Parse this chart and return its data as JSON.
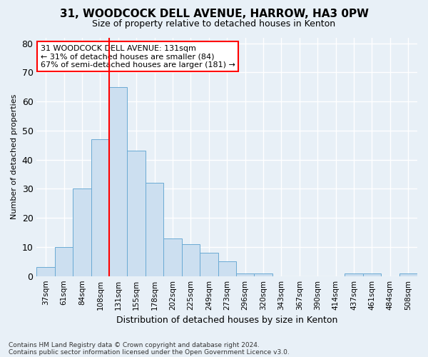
{
  "title1": "31, WOODCOCK DELL AVENUE, HARROW, HA3 0PW",
  "title2": "Size of property relative to detached houses in Kenton",
  "xlabel": "Distribution of detached houses by size in Kenton",
  "ylabel": "Number of detached properties",
  "categories": [
    "37sqm",
    "61sqm",
    "84sqm",
    "108sqm",
    "131sqm",
    "155sqm",
    "178sqm",
    "202sqm",
    "225sqm",
    "249sqm",
    "273sqm",
    "296sqm",
    "320sqm",
    "343sqm",
    "367sqm",
    "390sqm",
    "414sqm",
    "437sqm",
    "461sqm",
    "484sqm",
    "508sqm"
  ],
  "values": [
    3,
    10,
    30,
    47,
    65,
    43,
    32,
    13,
    11,
    8,
    5,
    1,
    1,
    0,
    0,
    0,
    0,
    1,
    1,
    0,
    1
  ],
  "bar_color": "#ccdff0",
  "bar_edge_color": "#6aaad4",
  "red_line_x": 3.5,
  "annotation_text": "31 WOODCOCK DELL AVENUE: 131sqm\n← 31% of detached houses are smaller (84)\n67% of semi-detached houses are larger (181) →",
  "annotation_box_color": "white",
  "annotation_box_edge_color": "red",
  "ylim": [
    0,
    82
  ],
  "yticks": [
    0,
    10,
    20,
    30,
    40,
    50,
    60,
    70,
    80
  ],
  "footnote1": "Contains HM Land Registry data © Crown copyright and database right 2024.",
  "footnote2": "Contains public sector information licensed under the Open Government Licence v3.0.",
  "bg_color": "#e8f0f7",
  "grid_color": "#ffffff",
  "title1_fontsize": 11,
  "title2_fontsize": 9,
  "ylabel_fontsize": 8,
  "xlabel_fontsize": 9
}
